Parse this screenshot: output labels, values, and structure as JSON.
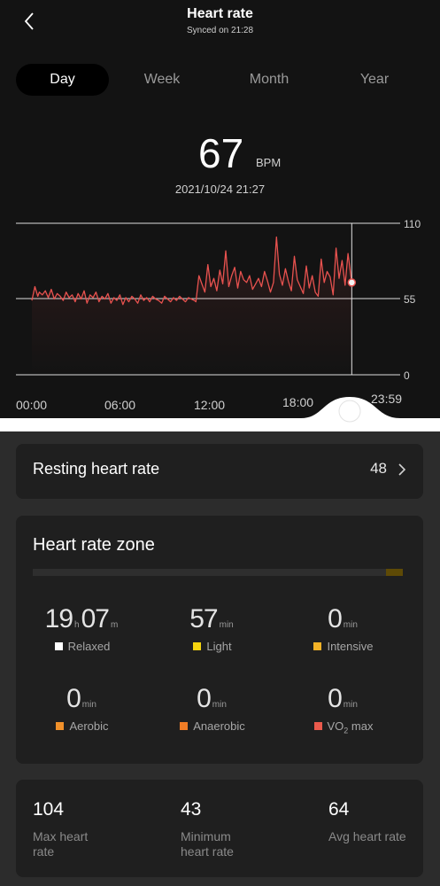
{
  "header": {
    "title": "Heart rate",
    "subtitle": "Synced on 21:28"
  },
  "tabs": [
    {
      "label": "Day",
      "active": true
    },
    {
      "label": "Week",
      "active": false
    },
    {
      "label": "Month",
      "active": false
    },
    {
      "label": "Year",
      "active": false
    }
  ],
  "reading": {
    "value": "67",
    "unit": "BPM",
    "datetime": "2021/10/24 21:27"
  },
  "chart_data": {
    "type": "line",
    "color": "#e8524f",
    "x_range_hours": [
      0,
      23.983
    ],
    "ylim": [
      0,
      110
    ],
    "y_ticks": [
      "110",
      "55",
      "0"
    ],
    "x_ticks": [
      "00:00",
      "06:00",
      "12:00",
      "18:00",
      "23:59"
    ],
    "selected_point": {
      "hour": 21.45,
      "value": 67
    },
    "series": [
      {
        "x": [
          0.0,
          0.2,
          0.4,
          0.5,
          0.7,
          0.9,
          1.1,
          1.3,
          1.5,
          1.7,
          1.9,
          2.1,
          2.3,
          2.5,
          2.7,
          2.9,
          3.1,
          3.3,
          3.5,
          3.7,
          3.9,
          4.1,
          4.3,
          4.5,
          4.7,
          4.9,
          5.1,
          5.3,
          5.5,
          5.7,
          5.9,
          6.1,
          6.3,
          6.5,
          6.7,
          6.9,
          7.1,
          7.3,
          7.5,
          7.7,
          7.9,
          8.1,
          8.3,
          8.5,
          8.7,
          8.9,
          9.1,
          9.3,
          9.5,
          9.7,
          9.9,
          10.1,
          10.3,
          10.5,
          10.7,
          10.9,
          11.0,
          11.2,
          11.4,
          11.6,
          11.8,
          12.0,
          12.2,
          12.4,
          12.6,
          12.8,
          13.0,
          13.2,
          13.4,
          13.6,
          13.8,
          14.0,
          14.2,
          14.4,
          14.6,
          14.8,
          15.0,
          15.2,
          15.4,
          15.6,
          15.8,
          16.0,
          16.2,
          16.4,
          16.6,
          16.8,
          17.0,
          17.2,
          17.4,
          17.6,
          17.8,
          18.0,
          18.2,
          18.4,
          18.6,
          18.8,
          19.0,
          19.2,
          19.4,
          19.6,
          19.8,
          20.0,
          20.2,
          20.4,
          20.6,
          20.8,
          21.0,
          21.2,
          21.45
        ],
        "values": [
          54,
          64,
          57,
          60,
          58,
          61,
          56,
          62,
          55,
          59,
          57,
          54,
          60,
          56,
          58,
          53,
          59,
          55,
          61,
          52,
          58,
          56,
          60,
          53,
          57,
          55,
          59,
          52,
          56,
          54,
          58,
          51,
          56,
          53,
          57,
          55,
          52,
          58,
          54,
          56,
          53,
          57,
          55,
          54,
          52,
          57,
          55,
          53,
          56,
          54,
          57,
          55,
          53,
          56,
          55,
          54,
          53,
          72,
          66,
          60,
          80,
          64,
          70,
          61,
          76,
          66,
          90,
          64,
          72,
          78,
          63,
          75,
          69,
          67,
          72,
          62,
          66,
          70,
          64,
          75,
          68,
          60,
          67,
          100,
          73,
          65,
          77,
          68,
          61,
          86,
          69,
          64,
          59,
          79,
          63,
          72,
          60,
          57,
          84,
          67,
          75,
          71,
          58,
          92,
          70,
          83,
          65,
          88,
          67
        ]
      }
    ]
  },
  "resting": {
    "label": "Resting heart rate",
    "value": "48"
  },
  "zone": {
    "title": "Heart rate zone",
    "items": [
      {
        "parts": [
          {
            "n": "19",
            "u": "h"
          },
          {
            "n": "07",
            "u": "m"
          }
        ],
        "label": "Relaxed",
        "color": "#ffffff"
      },
      {
        "parts": [
          {
            "n": "57",
            "u": "min"
          }
        ],
        "label": "Light",
        "color": "#f5d40f"
      },
      {
        "parts": [
          {
            "n": "0",
            "u": "min"
          }
        ],
        "label": "Intensive",
        "color": "#f2b227"
      },
      {
        "parts": [
          {
            "n": "0",
            "u": "min"
          }
        ],
        "label": "Aerobic",
        "color": "#f0902a"
      },
      {
        "parts": [
          {
            "n": "0",
            "u": "min"
          }
        ],
        "label": "Anaerobic",
        "color": "#ef7c26"
      },
      {
        "parts": [
          {
            "n": "0",
            "u": "min"
          }
        ],
        "label": "VO",
        "label_sub": "2",
        "label_suffix": " max",
        "color": "#ea5a4c"
      }
    ],
    "bar_fill_color": "#5e4a06"
  },
  "stats": [
    {
      "value": "104",
      "label_line1": "Max heart",
      "label_line2": "rate"
    },
    {
      "value": "43",
      "label_line1": "Minimum",
      "label_line2": "heart rate"
    },
    {
      "value": "64",
      "label_line1": "Avg heart rate",
      "label_line2": ""
    }
  ]
}
